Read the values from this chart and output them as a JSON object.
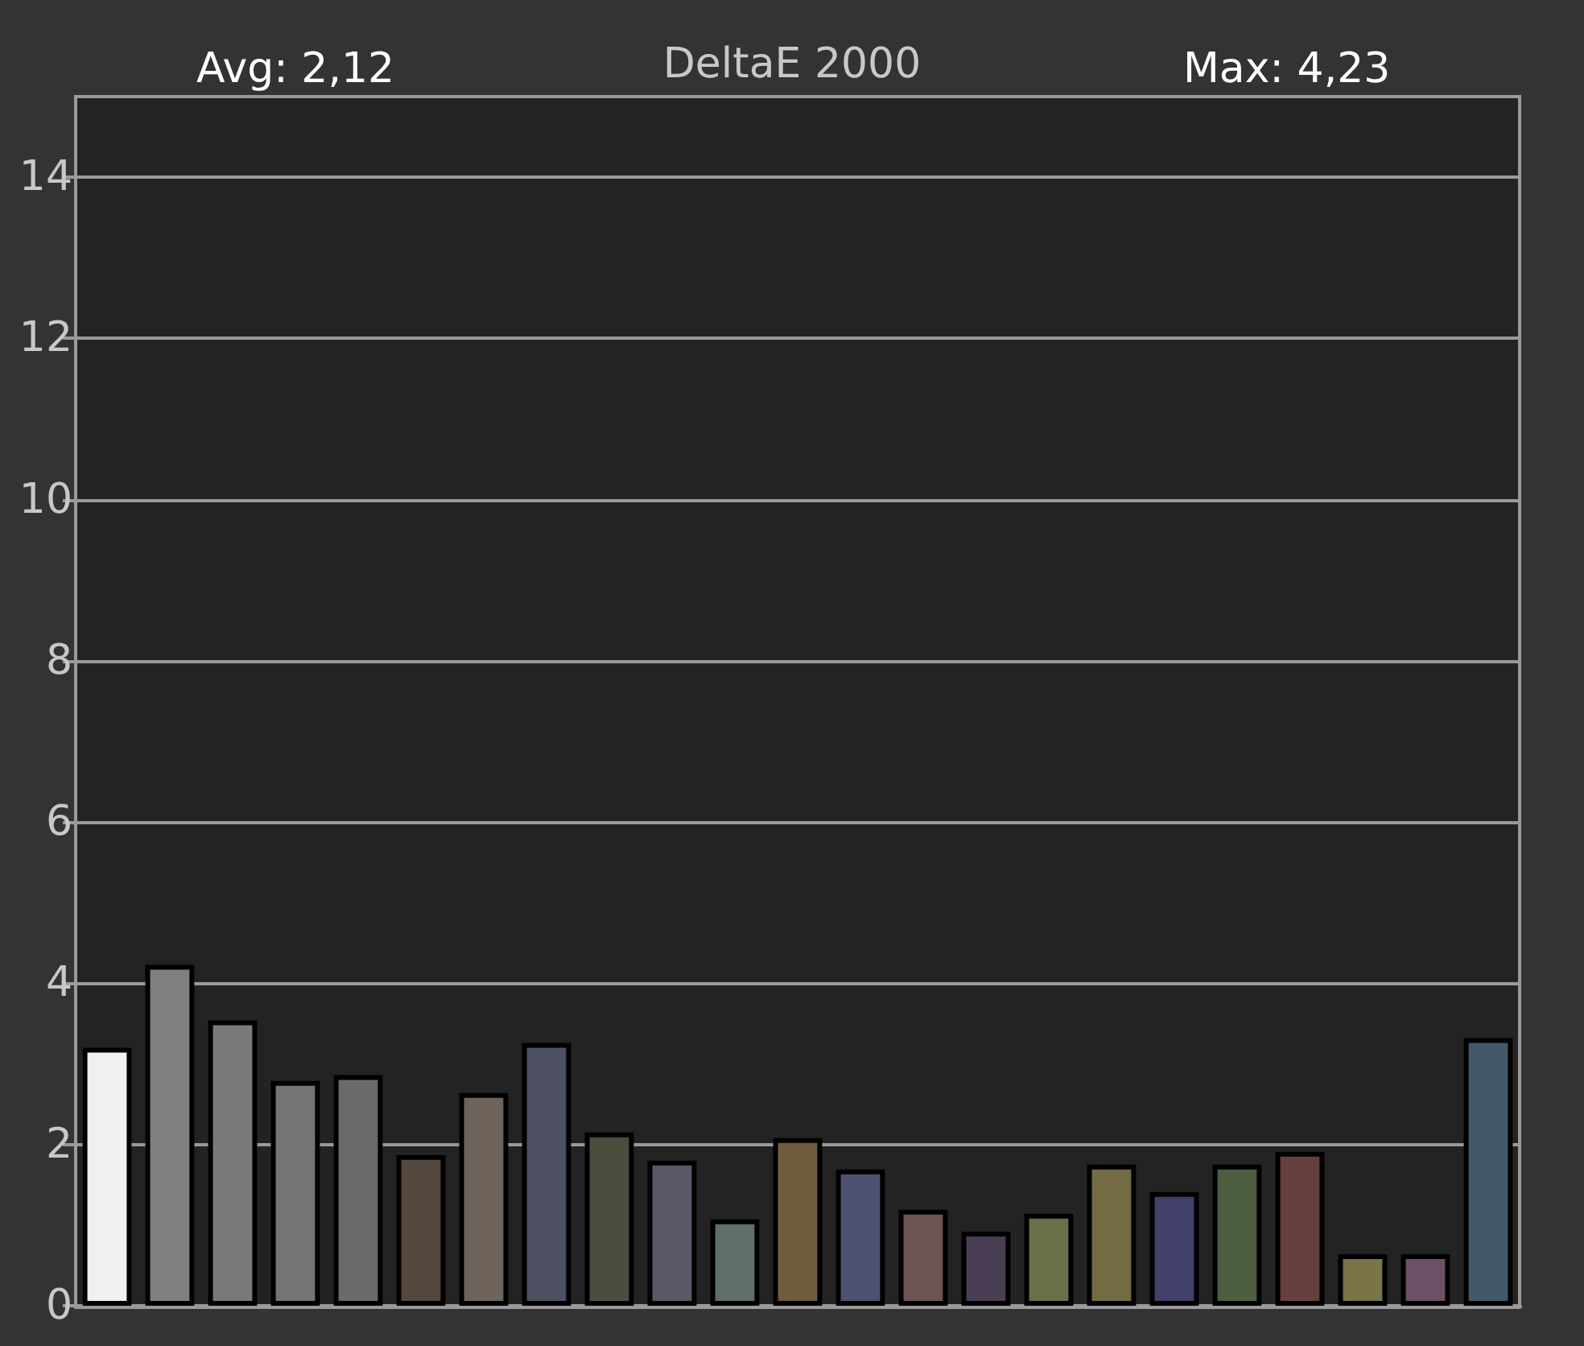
{
  "chart_data": {
    "type": "bar",
    "title": "DeltaE 2000",
    "annotations": [
      "Avg: 2,12",
      "Max: 4,23"
    ],
    "categories": [
      null,
      null,
      null,
      null,
      null,
      null,
      null,
      null,
      null,
      null,
      null,
      null,
      null,
      null,
      null,
      null,
      null,
      null,
      null,
      null,
      null,
      null,
      null
    ],
    "values": [
      3.2,
      4.23,
      3.54,
      2.79,
      2.86,
      1.87,
      2.64,
      3.26,
      2.15,
      1.8,
      1.07,
      2.08,
      1.69,
      1.19,
      0.92,
      1.14,
      1.75,
      1.41,
      1.75,
      1.91,
      0.64,
      0.64,
      3.32
    ],
    "colors": [
      "#f0f0f0",
      "#808080",
      "#7a7a7a",
      "#747474",
      "#6a6a6a",
      "#54483e",
      "#6e645c",
      "#4c5060",
      "#4a4e3c",
      "#5a5868",
      "#5e7068",
      "#6e5c3c",
      "#4e5070",
      "#6c5454",
      "#4a3e54",
      "#68704a",
      "#746a44",
      "#40406a",
      "#4e5e40",
      "#66403c",
      "#7a7448",
      "#6c5068",
      "#44586a"
    ],
    "ylim": [
      0,
      15
    ],
    "yticks": [
      0,
      2,
      4,
      6,
      8,
      10,
      12,
      14
    ],
    "grid": "y",
    "tick_labels": "y"
  }
}
